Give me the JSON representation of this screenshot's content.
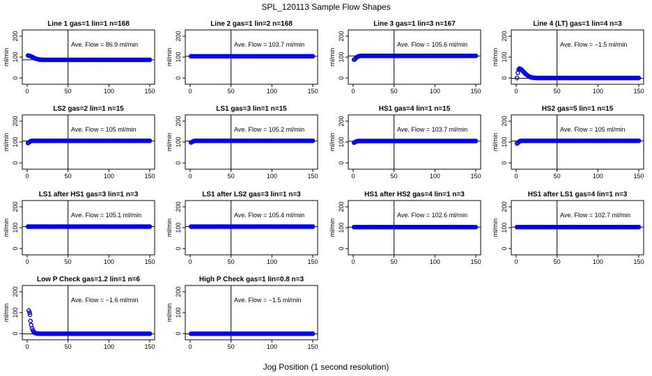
{
  "figure": {
    "title": "SPL_120113  Sample Flow Shapes",
    "xlabel": "Jog Position (1 second resolution)",
    "point_color": "#0000ff"
  },
  "chart_data": [
    {
      "type": "scatter",
      "title": "Line 1 gas=1 lin=1 n=168",
      "ylabel": "ml/min",
      "xlim": [
        0,
        150
      ],
      "ylim": [
        -30,
        230
      ],
      "xticks": [
        0,
        50,
        100,
        150
      ],
      "yticks": [
        0,
        100,
        200
      ],
      "hline": 86.9,
      "vline": 50,
      "annotation": "Ave. Flow =  86.9  ml/min",
      "x": [
        1,
        3,
        5,
        7,
        9,
        11,
        13,
        15,
        20,
        40,
        80,
        120,
        150
      ],
      "y": [
        108,
        106,
        103,
        99,
        95,
        92,
        90,
        88,
        87,
        87,
        87,
        87,
        87
      ]
    },
    {
      "type": "scatter",
      "title": "Line 2 gas=1 lin=2 n=168",
      "ylabel": "ml/min",
      "xlim": [
        0,
        150
      ],
      "ylim": [
        -30,
        230
      ],
      "xticks": [
        0,
        50,
        100,
        150
      ],
      "yticks": [
        0,
        100,
        200
      ],
      "hline": 103.7,
      "vline": 50,
      "annotation": "Ave. Flow =  103.7  ml/min",
      "x": [
        1,
        150
      ],
      "y": [
        104,
        104
      ]
    },
    {
      "type": "scatter",
      "title": "Line 3 gas=1 lin=3 n=167",
      "ylabel": "ml/min",
      "xlim": [
        0,
        150
      ],
      "ylim": [
        -30,
        230
      ],
      "xticks": [
        0,
        50,
        100,
        150
      ],
      "yticks": [
        0,
        100,
        200
      ],
      "hline": 105.6,
      "vline": 50,
      "annotation": "Ave. Flow =  105.6  ml/min",
      "x": [
        1,
        2,
        3,
        4,
        5,
        6,
        7,
        8,
        10,
        150
      ],
      "y": [
        88,
        90,
        94,
        98,
        101,
        103,
        104,
        105,
        106,
        106
      ]
    },
    {
      "type": "scatter",
      "title": "Line 4 (LT) gas=1 lin=4 n=3",
      "ylabel": "ml/min",
      "xlim": [
        0,
        150
      ],
      "ylim": [
        -30,
        230
      ],
      "xticks": [
        0,
        50,
        100,
        150
      ],
      "yticks": [
        0,
        100,
        200
      ],
      "hline": -1.5,
      "vline": 50,
      "annotation": "Ave. Flow =  −1.5  ml/min",
      "x": [
        1,
        2,
        3,
        4,
        5,
        6,
        7,
        8,
        9,
        10,
        11,
        12,
        13,
        14,
        15,
        16,
        17,
        18,
        20,
        22,
        25,
        30,
        40,
        150
      ],
      "y": [
        0,
        25,
        40,
        45,
        44,
        42,
        38,
        34,
        30,
        26,
        22,
        18,
        15,
        12,
        9,
        7,
        5,
        3,
        2,
        1,
        0,
        0,
        0,
        0
      ]
    },
    {
      "type": "scatter",
      "title": "LS2 gas=2 lin=1 n=15",
      "ylabel": "ml/min",
      "xlim": [
        0,
        150
      ],
      "ylim": [
        -30,
        230
      ],
      "xticks": [
        0,
        50,
        100,
        150
      ],
      "yticks": [
        0,
        100,
        200
      ],
      "hline": 105,
      "vline": 50,
      "annotation": "Ave. Flow =  105  ml/min",
      "x": [
        1,
        2,
        3,
        4,
        5,
        7,
        10,
        150
      ],
      "y": [
        95,
        98,
        101,
        104,
        105,
        106,
        106,
        106
      ]
    },
    {
      "type": "scatter",
      "title": "LS1 gas=3 lin=1 n=15",
      "ylabel": "ml/min",
      "xlim": [
        0,
        150
      ],
      "ylim": [
        -30,
        230
      ],
      "xticks": [
        0,
        50,
        100,
        150
      ],
      "yticks": [
        0,
        100,
        200
      ],
      "hline": 105.2,
      "vline": 50,
      "annotation": "Ave. Flow =  105.2  ml/min",
      "x": [
        1,
        2,
        3,
        4,
        5,
        7,
        10,
        150
      ],
      "y": [
        98,
        100,
        102,
        104,
        105,
        106,
        106,
        106
      ]
    },
    {
      "type": "scatter",
      "title": "HS1 gas=4 lin=1 n=15",
      "ylabel": "ml/min",
      "xlim": [
        0,
        150
      ],
      "ylim": [
        -30,
        230
      ],
      "xticks": [
        0,
        50,
        100,
        150
      ],
      "yticks": [
        0,
        100,
        200
      ],
      "hline": 103.7,
      "vline": 50,
      "annotation": "Ave. Flow =  103.7  ml/min",
      "x": [
        1,
        2,
        3,
        4,
        5,
        7,
        10,
        150
      ],
      "y": [
        97,
        99,
        101,
        103,
        104,
        105,
        105,
        105
      ]
    },
    {
      "type": "scatter",
      "title": "HS2 gas=5 lin=1 n=15",
      "ylabel": "ml/min",
      "xlim": [
        0,
        150
      ],
      "ylim": [
        -30,
        230
      ],
      "xticks": [
        0,
        50,
        100,
        150
      ],
      "yticks": [
        0,
        100,
        200
      ],
      "hline": 105,
      "vline": 50,
      "annotation": "Ave. Flow =  105  ml/min",
      "x": [
        1,
        2,
        3,
        4,
        5,
        7,
        10,
        150
      ],
      "y": [
        93,
        96,
        100,
        103,
        105,
        106,
        106,
        106
      ]
    },
    {
      "type": "scatter",
      "title": "LS1 after HS1 gas=3 lin=1 n=3",
      "ylabel": "ml/min",
      "xlim": [
        0,
        150
      ],
      "ylim": [
        -30,
        230
      ],
      "xticks": [
        0,
        50,
        100,
        150
      ],
      "yticks": [
        0,
        100,
        200
      ],
      "hline": 105.1,
      "vline": 50,
      "annotation": "Ave. Flow =  105.1  ml/min",
      "x": [
        1,
        150
      ],
      "y": [
        105,
        105
      ]
    },
    {
      "type": "scatter",
      "title": "LS1 after LS2 gas=3 lin=1 n=3",
      "ylabel": "ml/min",
      "xlim": [
        0,
        150
      ],
      "ylim": [
        -30,
        230
      ],
      "xticks": [
        0,
        50,
        100,
        150
      ],
      "yticks": [
        0,
        100,
        200
      ],
      "hline": 105.4,
      "vline": 50,
      "annotation": "Ave. Flow =  105.4  ml/min",
      "x": [
        1,
        150
      ],
      "y": [
        105,
        105
      ]
    },
    {
      "type": "scatter",
      "title": "HS1 after HS2 gas=4 lin=1 n=3",
      "ylabel": "ml/min",
      "xlim": [
        0,
        150
      ],
      "ylim": [
        -30,
        230
      ],
      "xticks": [
        0,
        50,
        100,
        150
      ],
      "yticks": [
        0,
        100,
        200
      ],
      "hline": 102.6,
      "vline": 50,
      "annotation": "Ave. Flow =  102.6  ml/min",
      "x": [
        1,
        150
      ],
      "y": [
        103,
        103
      ]
    },
    {
      "type": "scatter",
      "title": "HS1 after LS1 gas=4 lin=1 n=3",
      "ylabel": "ml/min",
      "xlim": [
        0,
        150
      ],
      "ylim": [
        -30,
        230
      ],
      "xticks": [
        0,
        50,
        100,
        150
      ],
      "yticks": [
        0,
        100,
        200
      ],
      "hline": 102.7,
      "vline": 50,
      "annotation": "Ave. Flow =  102.7  ml/min",
      "x": [
        1,
        150
      ],
      "y": [
        103,
        103
      ]
    },
    {
      "type": "scatter",
      "title": "Low P Check gas=1.2 lin=1 n=6",
      "ylabel": "ml/min",
      "xlim": [
        0,
        150
      ],
      "ylim": [
        -30,
        230
      ],
      "xticks": [
        0,
        50,
        100,
        150
      ],
      "yticks": [
        0,
        100,
        200
      ],
      "hline": -1.6,
      "vline": 50,
      "annotation": "Ave. Flow =  −1.6  ml/min",
      "x": [
        2,
        3,
        3.5,
        4,
        5,
        6,
        7,
        8,
        9,
        10,
        12,
        15,
        150
      ],
      "y": [
        110,
        100,
        90,
        60,
        40,
        25,
        15,
        8,
        4,
        2,
        0,
        -1,
        -1
      ]
    },
    {
      "type": "scatter",
      "title": "High P Check gas=1 lin=0.8 n=3",
      "ylabel": "ml/min",
      "xlim": [
        0,
        150
      ],
      "ylim": [
        -30,
        230
      ],
      "xticks": [
        0,
        50,
        100,
        150
      ],
      "yticks": [
        0,
        100,
        200
      ],
      "hline": -1.5,
      "vline": 50,
      "annotation": "Ave. Flow =  −1.5  ml/min",
      "x": [
        1,
        150
      ],
      "y": [
        -1,
        -1
      ]
    }
  ]
}
